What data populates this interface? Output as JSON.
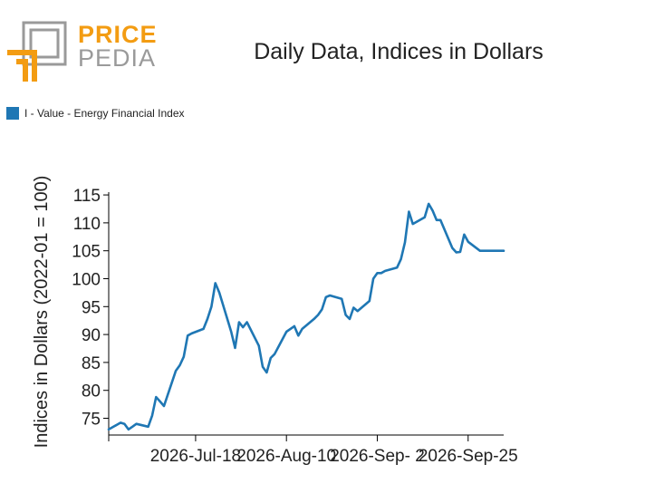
{
  "brand": {
    "word1": "PRICE",
    "word2": "PEDIA",
    "accent": "#f39c12",
    "gray": "#9a9a9a"
  },
  "chart_data": {
    "type": "line",
    "title": "Daily Data, Indices in Dollars",
    "ylabel": "Indices in Dollars (2022-01 = 100)",
    "xlabel": "",
    "ylim": [
      72,
      115.5
    ],
    "yticks": [
      75,
      80,
      85,
      90,
      95,
      100,
      105,
      110,
      115
    ],
    "xlim": [
      "2026-06-26",
      "2026-10-04"
    ],
    "xticks": [
      "2026-06-26",
      "2026-07-18",
      "2026-08-10",
      "2026-09-02",
      "2026-09-25"
    ],
    "xtick_labels": [
      "",
      "2026-Jul-18",
      "2026-Aug-10",
      "2026-Sep- 2",
      "2026-Sep-25"
    ],
    "legend_position": "top-left",
    "grid": false,
    "series": [
      {
        "name": "I - Value - Energy Financial Index",
        "color": "#1f77b4",
        "x": [
          "2026-06-26",
          "2026-06-29",
          "2026-06-30",
          "2026-07-01",
          "2026-07-02",
          "2026-07-03",
          "2026-07-06",
          "2026-07-07",
          "2026-07-08",
          "2026-07-09",
          "2026-07-10",
          "2026-07-13",
          "2026-07-14",
          "2026-07-15",
          "2026-07-16",
          "2026-07-17",
          "2026-07-20",
          "2026-07-21",
          "2026-07-22",
          "2026-07-23",
          "2026-07-24",
          "2026-07-27",
          "2026-07-28",
          "2026-07-29",
          "2026-07-30",
          "2026-07-31",
          "2026-08-03",
          "2026-08-04",
          "2026-08-05",
          "2026-08-06",
          "2026-08-07",
          "2026-08-10",
          "2026-08-11",
          "2026-08-12",
          "2026-08-13",
          "2026-08-14",
          "2026-08-17",
          "2026-08-18",
          "2026-08-19",
          "2026-08-20",
          "2026-08-21",
          "2026-08-24",
          "2026-08-25",
          "2026-08-26",
          "2026-08-27",
          "2026-08-28",
          "2026-08-31",
          "2026-09-01",
          "2026-09-02",
          "2026-09-03",
          "2026-09-04",
          "2026-09-07",
          "2026-09-08",
          "2026-09-09",
          "2026-09-10",
          "2026-09-11",
          "2026-09-14",
          "2026-09-15",
          "2026-09-16",
          "2026-09-17",
          "2026-09-18",
          "2026-09-21",
          "2026-09-22",
          "2026-09-23",
          "2026-09-24",
          "2026-09-25",
          "2026-09-28",
          "2026-09-29",
          "2026-09-30",
          "2026-10-01",
          "2026-10-02",
          "2026-10-03",
          "2026-10-04"
        ],
        "y": [
          73.0,
          74.2,
          74.0,
          73.0,
          73.5,
          74.0,
          73.5,
          75.5,
          78.8,
          78.0,
          77.2,
          83.5,
          84.5,
          86.0,
          89.8,
          90.2,
          91.0,
          92.8,
          95.0,
          99.2,
          97.5,
          90.5,
          87.6,
          92.2,
          91.3,
          92.2,
          88.0,
          84.2,
          83.2,
          85.8,
          86.5,
          90.5,
          91.0,
          91.5,
          89.8,
          91.0,
          92.8,
          93.5,
          94.5,
          96.7,
          97.0,
          96.4,
          93.5,
          92.8,
          94.8,
          94.2,
          96.0,
          100.0,
          101.0,
          101.0,
          101.4,
          102.0,
          103.5,
          106.5,
          112.0,
          109.8,
          111.0,
          113.4,
          112.2,
          110.5,
          110.5,
          105.5,
          104.7,
          104.8,
          107.9,
          106.6,
          105.0,
          105.0,
          105.0,
          105.0,
          105.0,
          105.0,
          105.0
        ]
      }
    ]
  }
}
